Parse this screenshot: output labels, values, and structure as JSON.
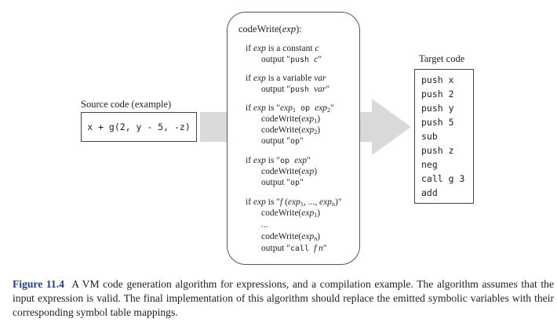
{
  "source": {
    "label": "Source code (example)",
    "code": "x + g(2, y - 5, -z)"
  },
  "algorithm": {
    "title_pre": "codeWrite(",
    "title_var": "exp",
    "title_post": "):",
    "cases": {
      "constant": {
        "if_pre": "if ",
        "exp": "exp",
        "mid": " is a constant ",
        "c": "c",
        "out_pre": "output \"",
        "push": "push ",
        "c2": "c",
        "out_post": "\""
      },
      "variable": {
        "if_pre": "if ",
        "exp": "exp",
        "mid": " is a variable ",
        "var": "var",
        "out_pre": "output \"",
        "push": "push ",
        "var2": "var",
        "out_post": "\""
      },
      "binary": {
        "if_pre": "if ",
        "exp": "exp",
        "mid": " is \"",
        "exp1": "exp",
        "sub1": "1",
        "op": " op ",
        "exp2": "exp",
        "sub2": "2",
        "close": "\"",
        "cw1_pre": "codeWrite(",
        "cw1_exp": "exp",
        "cw1_sub": "1",
        "cw1_post": ")",
        "cw2_pre": "codeWrite(",
        "cw2_exp": "exp",
        "cw2_sub": "2",
        "cw2_post": ")",
        "out_pre": "output \"",
        "out_op": "op",
        "out_post": "\""
      },
      "unary": {
        "if_pre": "if ",
        "exp": "exp",
        "mid": " is \"",
        "op": "op ",
        "exp2": "exp",
        "close": "\"",
        "cw_pre": "codeWrite(",
        "cw_exp": "exp",
        "cw_post": ")",
        "out_pre": "output \"",
        "out_op": "op",
        "out_post": "\""
      },
      "call": {
        "if_pre": "if ",
        "exp": "exp",
        "mid": " is \"",
        "f": "f",
        "open": " (",
        "exp1": "exp",
        "sub1": "1",
        "dots": ", ..., ",
        "expn": "exp",
        "subn": "n",
        "close": ")\"",
        "cw1_pre": "codeWrite(",
        "cw1_exp": "exp",
        "cw1_sub": "1",
        "cw1_post": ")",
        "ellipsis": "...",
        "cwn_pre": "codeWrite(",
        "cwn_exp": "exp",
        "cwn_sub": "n",
        "cwn_post": ")",
        "out_pre": "output \"",
        "call": "call ",
        "f2": "f",
        "n": " n",
        "out_post": "\""
      }
    }
  },
  "target": {
    "label": "Target code",
    "lines": [
      "push x",
      "push 2",
      "push y",
      "push 5",
      "sub",
      "push z",
      "neg",
      "call g 3",
      "add"
    ]
  },
  "caption": {
    "figure_label": "Figure 11.4",
    "text": "A VM code generation algorithm for expressions, and a compilation example. The algorithm assumes that the input expression is valid. The final implementation of this algorithm should replace the emitted symbolic variables with their corresponding symbol table mappings."
  }
}
